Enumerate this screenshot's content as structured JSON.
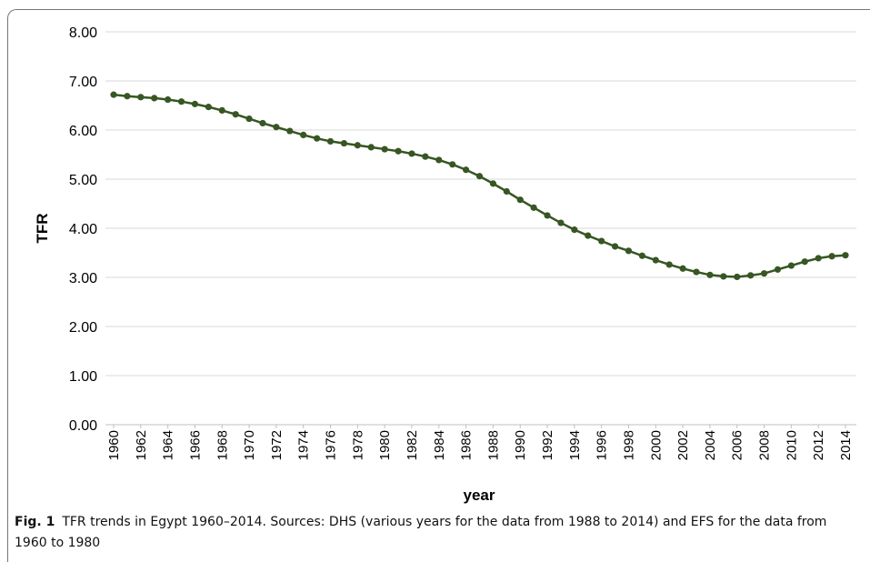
{
  "chart_data": {
    "type": "line",
    "xlabel": "year",
    "ylabel": "TFR",
    "ylim": [
      0,
      8
    ],
    "yticks": [
      "0.00",
      "1.00",
      "2.00",
      "3.00",
      "4.00",
      "5.00",
      "6.00",
      "7.00",
      "8.00"
    ],
    "xticks": [
      "1960",
      "1962",
      "1964",
      "1966",
      "1968",
      "1970",
      "1972",
      "1974",
      "1976",
      "1978",
      "1980",
      "1982",
      "1984",
      "1986",
      "1988",
      "1990",
      "1992",
      "1994",
      "1996",
      "1998",
      "2000",
      "2002",
      "2004",
      "2006",
      "2008",
      "2010",
      "2012",
      "2014"
    ],
    "x": [
      1960,
      1961,
      1962,
      1963,
      1964,
      1965,
      1966,
      1967,
      1968,
      1969,
      1970,
      1971,
      1972,
      1973,
      1974,
      1975,
      1976,
      1977,
      1978,
      1979,
      1980,
      1981,
      1982,
      1983,
      1984,
      1985,
      1986,
      1987,
      1988,
      1989,
      1990,
      1991,
      1992,
      1993,
      1994,
      1995,
      1996,
      1997,
      1998,
      1999,
      2000,
      2001,
      2002,
      2003,
      2004,
      2005,
      2006,
      2007,
      2008,
      2009,
      2010,
      2011,
      2012,
      2013,
      2014
    ],
    "series": [
      {
        "values": [
          6.72,
          6.69,
          6.67,
          6.65,
          6.62,
          6.58,
          6.53,
          6.47,
          6.4,
          6.32,
          6.23,
          6.14,
          6.06,
          5.98,
          5.9,
          5.83,
          5.77,
          5.73,
          5.69,
          5.65,
          5.61,
          5.57,
          5.52,
          5.46,
          5.39,
          5.3,
          5.19,
          5.06,
          4.91,
          4.75,
          4.58,
          4.42,
          4.26,
          4.11,
          3.97,
          3.85,
          3.74,
          3.63,
          3.54,
          3.44,
          3.35,
          3.26,
          3.18,
          3.11,
          3.05,
          3.02,
          3.01,
          3.04,
          3.08,
          3.16,
          3.24,
          3.32,
          3.39,
          3.43,
          3.45
        ],
        "color": "#375623"
      }
    ],
    "grid": true
  },
  "caption": {
    "label": "Fig. 1",
    "text": "TFR trends in Egypt 1960–2014. Sources: DHS (various years for the data from 1988 to 2014) and EFS for the data from 1960 to 1980"
  }
}
